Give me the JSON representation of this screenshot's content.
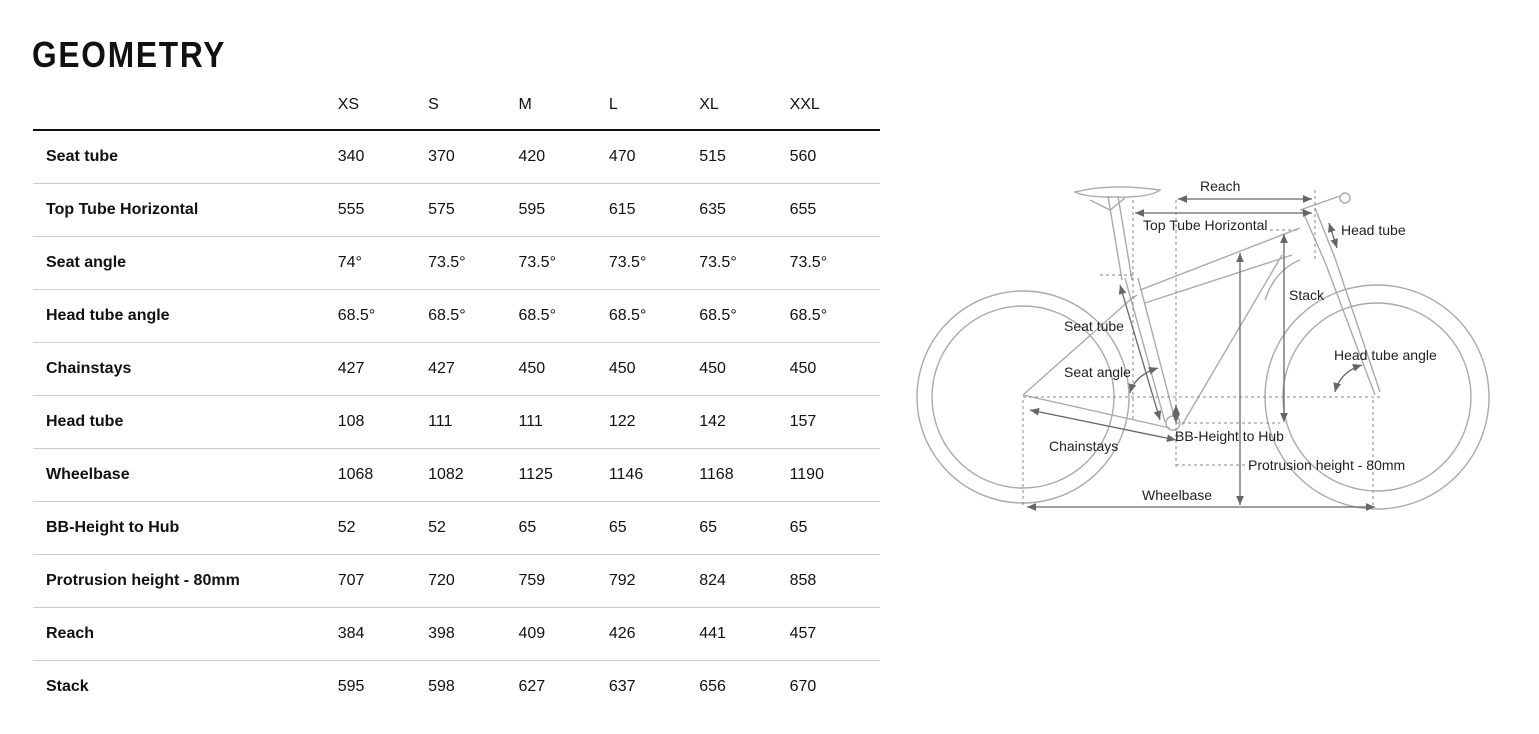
{
  "title": "GEOMETRY",
  "table": {
    "sizes": [
      "XS",
      "S",
      "M",
      "L",
      "XL",
      "XXL"
    ],
    "rows": [
      {
        "label": "Seat tube",
        "values": [
          "340",
          "370",
          "420",
          "470",
          "515",
          "560"
        ]
      },
      {
        "label": "Top Tube Horizontal",
        "values": [
          "555",
          "575",
          "595",
          "615",
          "635",
          "655"
        ]
      },
      {
        "label": "Seat angle",
        "values": [
          "74°",
          "73.5°",
          "73.5°",
          "73.5°",
          "73.5°",
          "73.5°"
        ]
      },
      {
        "label": "Head tube angle",
        "values": [
          "68.5°",
          "68.5°",
          "68.5°",
          "68.5°",
          "68.5°",
          "68.5°"
        ]
      },
      {
        "label": "Chainstays",
        "values": [
          "427",
          "427",
          "450",
          "450",
          "450",
          "450"
        ]
      },
      {
        "label": "Head tube",
        "values": [
          "108",
          "111",
          "111",
          "122",
          "142",
          "157"
        ]
      },
      {
        "label": "Wheelbase",
        "values": [
          "1068",
          "1082",
          "1125",
          "1146",
          "1168",
          "1190"
        ]
      },
      {
        "label": "BB-Height to Hub",
        "values": [
          "52",
          "52",
          "65",
          "65",
          "65",
          "65"
        ]
      },
      {
        "label": "Protrusion height - 80mm",
        "values": [
          "707",
          "720",
          "759",
          "792",
          "824",
          "858"
        ]
      },
      {
        "label": "Reach",
        "values": [
          "384",
          "398",
          "409",
          "426",
          "441",
          "457"
        ]
      },
      {
        "label": "Stack",
        "values": [
          "595",
          "598",
          "627",
          "637",
          "656",
          "670"
        ]
      }
    ]
  },
  "diagram": {
    "labels": {
      "reach": "Reach",
      "top_tube": "Top Tube Horizontal",
      "head_tube": "Head tube",
      "stack": "Stack",
      "seat_tube": "Seat tube",
      "head_tube_angle": "Head tube angle",
      "seat_angle": "Seat angle",
      "bb_height": "BB-Height to Hub",
      "chainstays": "Chainstays",
      "protrusion": "Protrusion height - 80mm",
      "wheelbase": "Wheelbase"
    }
  }
}
